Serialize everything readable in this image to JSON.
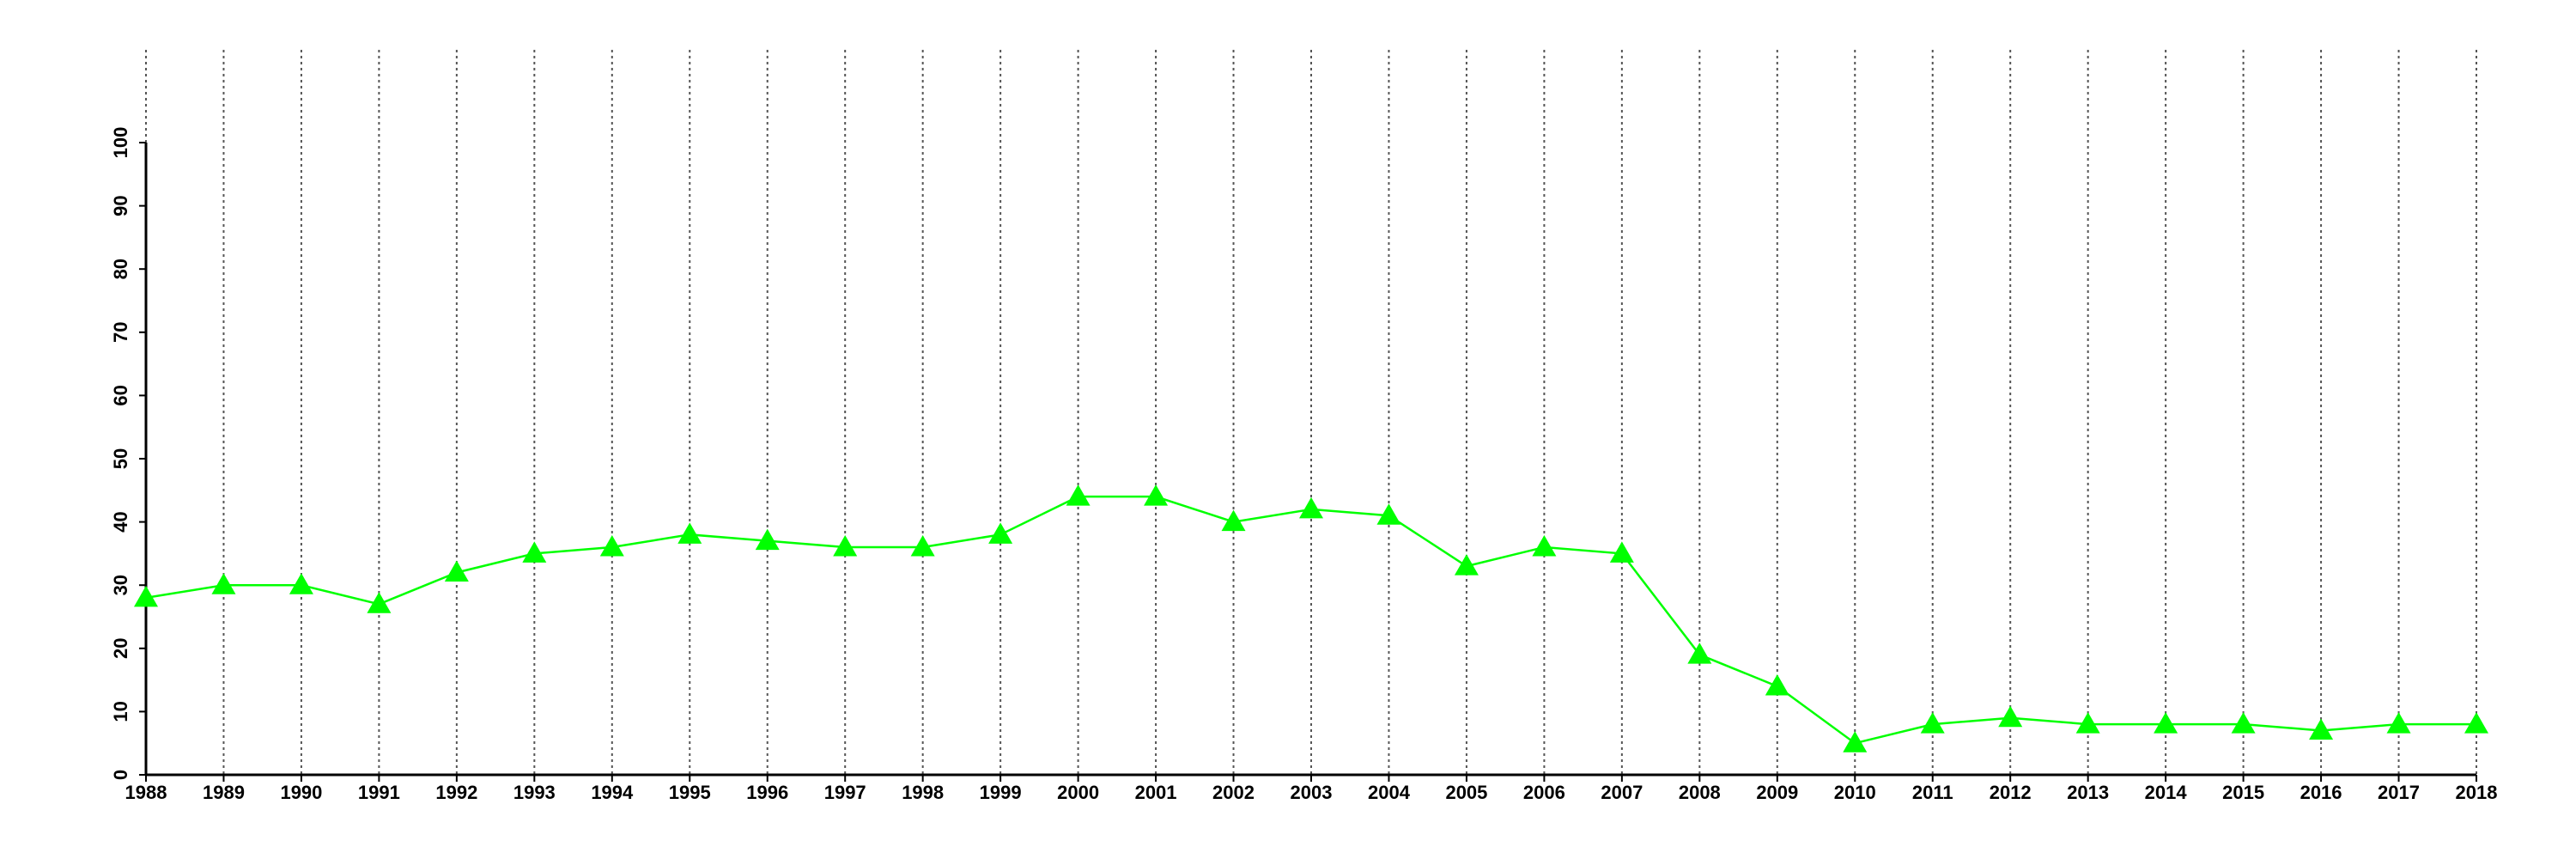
{
  "chart_data": {
    "type": "line",
    "x": [
      1988,
      1989,
      1990,
      1991,
      1992,
      1993,
      1994,
      1995,
      1996,
      1997,
      1998,
      1999,
      2000,
      2001,
      2002,
      2003,
      2004,
      2005,
      2006,
      2007,
      2008,
      2009,
      2010,
      2011,
      2012,
      2013,
      2014,
      2015,
      2016,
      2017,
      2018
    ],
    "values": [
      28,
      30,
      30,
      27,
      32,
      35,
      36,
      38,
      37,
      36,
      36,
      38,
      44,
      44,
      40,
      42,
      41,
      33,
      36,
      35,
      19,
      14,
      5,
      8,
      9,
      8,
      8,
      8,
      7,
      8,
      8
    ],
    "color": "#00ff00",
    "xlim": [
      1988,
      2018
    ],
    "xticks": [
      1988,
      1989,
      1990,
      1991,
      1992,
      1993,
      1994,
      1995,
      1996,
      1997,
      1998,
      1999,
      2000,
      2001,
      2002,
      2003,
      2004,
      2005,
      2006,
      2007,
      2008,
      2009,
      2010,
      2011,
      2012,
      2013,
      2014,
      2015,
      2016,
      2017,
      2018
    ],
    "ylim": [
      0,
      100
    ],
    "yticks": [
      0,
      10,
      20,
      30,
      40,
      50,
      60,
      70,
      80,
      90,
      100
    ],
    "grid": true
  }
}
